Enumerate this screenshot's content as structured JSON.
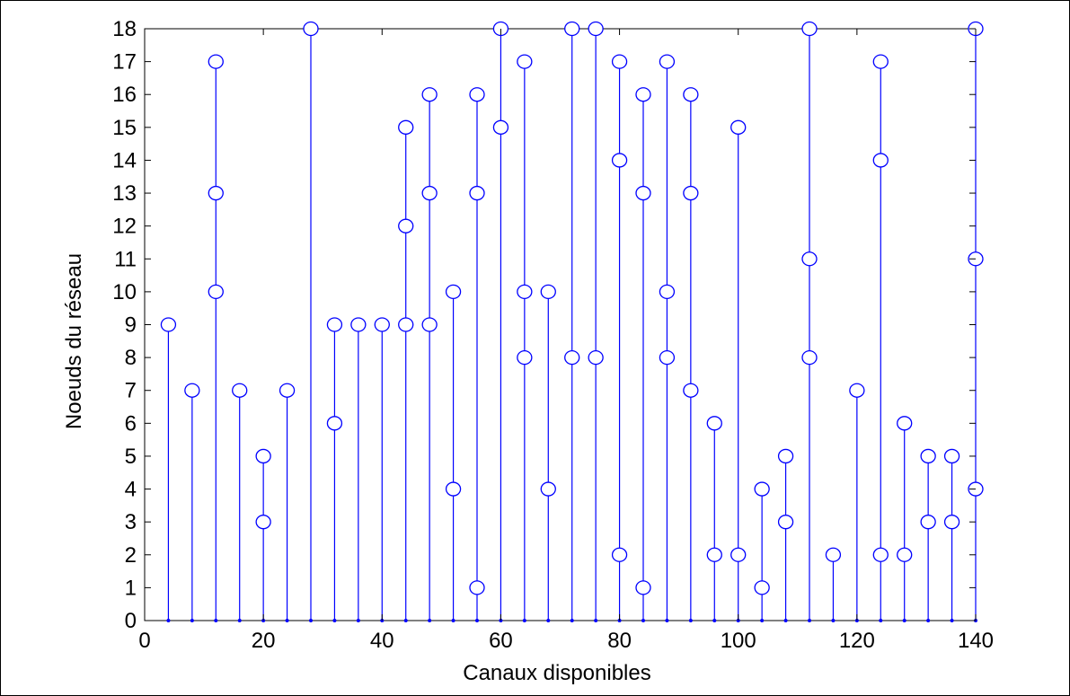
{
  "chart_data": {
    "type": "stem",
    "title": "",
    "xlabel": "Canaux disponibles",
    "ylabel": "Noeuds du réseau",
    "xlim": [
      0,
      140
    ],
    "ylim": [
      0,
      18
    ],
    "xticks": [
      0,
      20,
      40,
      60,
      80,
      100,
      120,
      140
    ],
    "yticks": [
      0,
      1,
      2,
      3,
      4,
      5,
      6,
      7,
      8,
      9,
      10,
      11,
      12,
      13,
      14,
      15,
      16,
      17,
      18
    ],
    "grid": false,
    "line_color": "#0000ff",
    "marker": "circle",
    "points": [
      {
        "x": 4,
        "y": 9
      },
      {
        "x": 8,
        "y": 7
      },
      {
        "x": 12,
        "y": 10
      },
      {
        "x": 12,
        "y": 13
      },
      {
        "x": 12,
        "y": 17
      },
      {
        "x": 16,
        "y": 7
      },
      {
        "x": 20,
        "y": 3
      },
      {
        "x": 20,
        "y": 5
      },
      {
        "x": 24,
        "y": 7
      },
      {
        "x": 28,
        "y": 18
      },
      {
        "x": 32,
        "y": 6
      },
      {
        "x": 32,
        "y": 9
      },
      {
        "x": 36,
        "y": 9
      },
      {
        "x": 40,
        "y": 9
      },
      {
        "x": 44,
        "y": 9
      },
      {
        "x": 44,
        "y": 12
      },
      {
        "x": 44,
        "y": 15
      },
      {
        "x": 48,
        "y": 9
      },
      {
        "x": 48,
        "y": 13
      },
      {
        "x": 48,
        "y": 16
      },
      {
        "x": 52,
        "y": 4
      },
      {
        "x": 52,
        "y": 10
      },
      {
        "x": 56,
        "y": 1
      },
      {
        "x": 56,
        "y": 13
      },
      {
        "x": 56,
        "y": 16
      },
      {
        "x": 60,
        "y": 15
      },
      {
        "x": 60,
        "y": 18
      },
      {
        "x": 64,
        "y": 8
      },
      {
        "x": 64,
        "y": 10
      },
      {
        "x": 64,
        "y": 17
      },
      {
        "x": 68,
        "y": 4
      },
      {
        "x": 68,
        "y": 10
      },
      {
        "x": 72,
        "y": 8
      },
      {
        "x": 72,
        "y": 18
      },
      {
        "x": 76,
        "y": 8
      },
      {
        "x": 76,
        "y": 18
      },
      {
        "x": 80,
        "y": 2
      },
      {
        "x": 80,
        "y": 14
      },
      {
        "x": 80,
        "y": 17
      },
      {
        "x": 84,
        "y": 1
      },
      {
        "x": 84,
        "y": 13
      },
      {
        "x": 84,
        "y": 16
      },
      {
        "x": 88,
        "y": 8
      },
      {
        "x": 88,
        "y": 10
      },
      {
        "x": 88,
        "y": 17
      },
      {
        "x": 92,
        "y": 7
      },
      {
        "x": 92,
        "y": 13
      },
      {
        "x": 92,
        "y": 16
      },
      {
        "x": 96,
        "y": 2
      },
      {
        "x": 96,
        "y": 6
      },
      {
        "x": 100,
        "y": 2
      },
      {
        "x": 100,
        "y": 15
      },
      {
        "x": 104,
        "y": 1
      },
      {
        "x": 104,
        "y": 4
      },
      {
        "x": 108,
        "y": 3
      },
      {
        "x": 108,
        "y": 5
      },
      {
        "x": 112,
        "y": 8
      },
      {
        "x": 112,
        "y": 11
      },
      {
        "x": 112,
        "y": 18
      },
      {
        "x": 116,
        "y": 2
      },
      {
        "x": 120,
        "y": 7
      },
      {
        "x": 124,
        "y": 2
      },
      {
        "x": 124,
        "y": 14
      },
      {
        "x": 124,
        "y": 17
      },
      {
        "x": 128,
        "y": 2
      },
      {
        "x": 128,
        "y": 6
      },
      {
        "x": 132,
        "y": 3
      },
      {
        "x": 132,
        "y": 5
      },
      {
        "x": 136,
        "y": 3
      },
      {
        "x": 136,
        "y": 5
      },
      {
        "x": 140,
        "y": 4
      },
      {
        "x": 140,
        "y": 11
      },
      {
        "x": 140,
        "y": 18
      }
    ]
  }
}
